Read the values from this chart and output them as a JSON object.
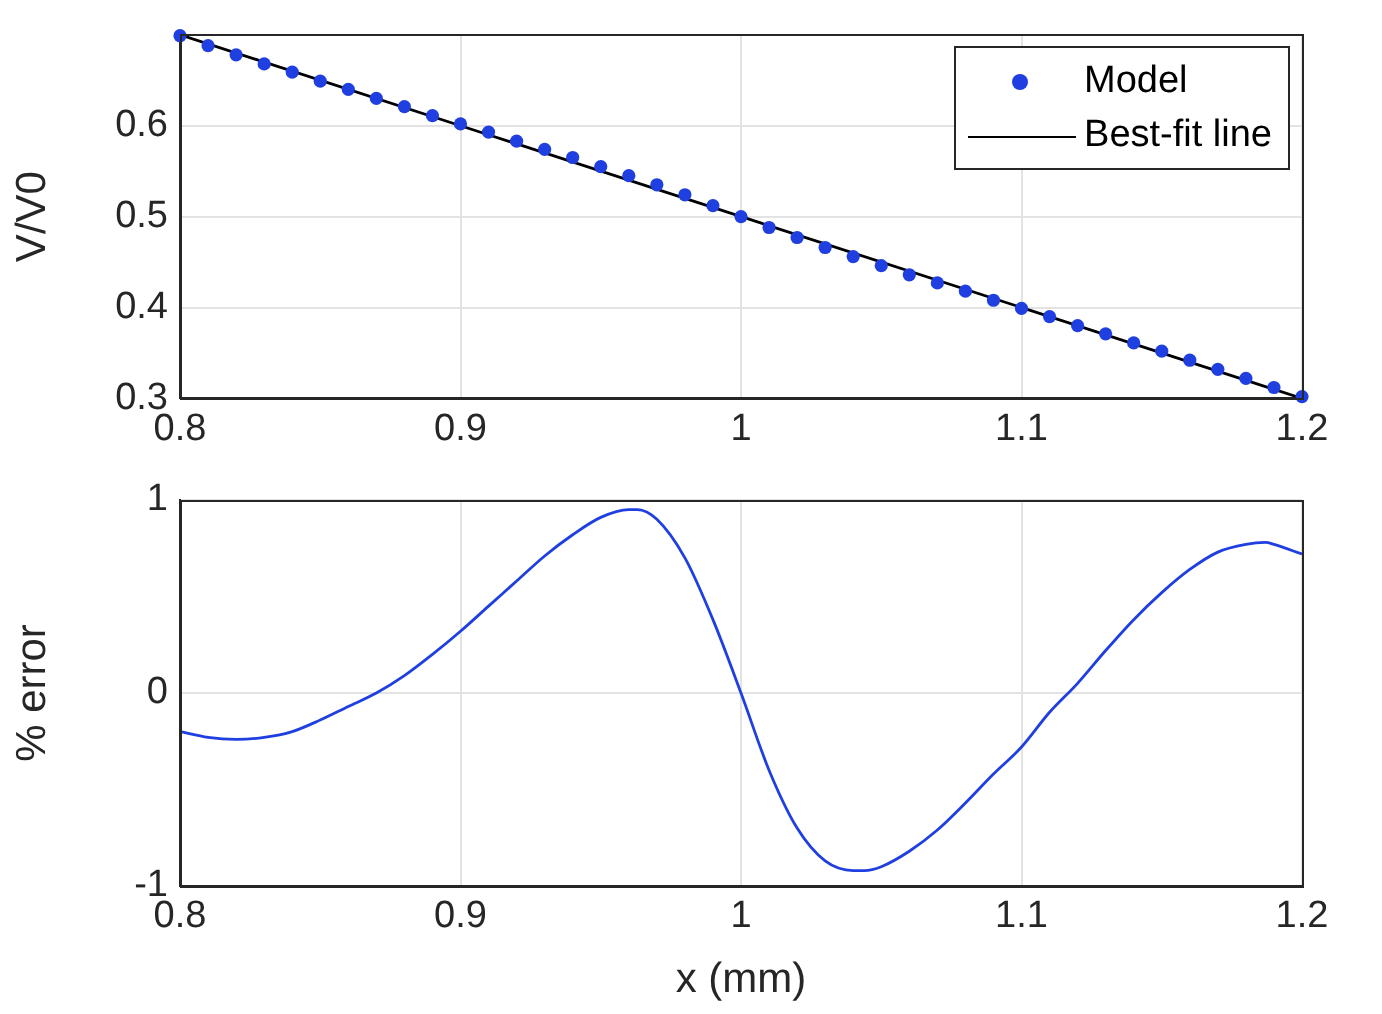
{
  "chart_data": [
    {
      "type": "scatter",
      "ylabel": "V/V0",
      "xlim": [
        0.8,
        1.2
      ],
      "xticks": [
        0.8,
        0.9,
        1,
        1.1,
        1.2
      ],
      "ylim": [
        0.3,
        0.7
      ],
      "yticks": [
        0.3,
        0.4,
        0.5,
        0.6
      ],
      "grid": true,
      "legend": "top right",
      "x": [
        0.8,
        0.81,
        0.82,
        0.83,
        0.84,
        0.85,
        0.86,
        0.87,
        0.88,
        0.89,
        0.9,
        0.91,
        0.92,
        0.93,
        0.94,
        0.95,
        0.96,
        0.97,
        0.98,
        0.99,
        1.0,
        1.01,
        1.02,
        1.03,
        1.04,
        1.05,
        1.06,
        1.07,
        1.08,
        1.09,
        1.1,
        1.11,
        1.12,
        1.13,
        1.14,
        1.15,
        1.16,
        1.17,
        1.18,
        1.19,
        1.2
      ],
      "series": [
        {
          "name": "Model",
          "type": "scatter",
          "marker": "circle",
          "color": "#1f3fe0",
          "values": [
            0.699,
            0.688,
            0.678,
            0.668,
            0.659,
            0.649,
            0.64,
            0.63,
            0.621,
            0.611,
            0.602,
            0.593,
            0.583,
            0.574,
            0.565,
            0.555,
            0.545,
            0.535,
            0.524,
            0.512,
            0.5,
            0.488,
            0.477,
            0.466,
            0.456,
            0.446,
            0.436,
            0.427,
            0.418,
            0.408,
            0.399,
            0.39,
            0.38,
            0.371,
            0.361,
            0.352,
            0.342,
            0.332,
            0.322,
            0.312,
            0.302
          ]
        },
        {
          "name": "Best-fit line",
          "type": "line",
          "marker": "none",
          "line_style": "solid",
          "color": "#000000",
          "x": [
            0.8,
            1.2
          ],
          "values": [
            0.7,
            0.3
          ]
        }
      ]
    },
    {
      "type": "line",
      "xlabel": "x (mm)",
      "ylabel": "% error",
      "xlim": [
        0.8,
        1.2
      ],
      "xticks": [
        0.8,
        0.9,
        1,
        1.1,
        1.2
      ],
      "ylim": [
        -1,
        1
      ],
      "yticks": [
        -1,
        0,
        1
      ],
      "grid": true,
      "marker": "none",
      "line_style": "solid",
      "x": [
        0.8,
        0.81,
        0.82,
        0.83,
        0.84,
        0.85,
        0.86,
        0.87,
        0.88,
        0.89,
        0.9,
        0.91,
        0.92,
        0.93,
        0.94,
        0.95,
        0.96,
        0.963,
        0.97,
        0.98,
        0.99,
        1.0,
        1.01,
        1.02,
        1.03,
        1.04,
        1.044,
        1.05,
        1.06,
        1.07,
        1.08,
        1.09,
        1.1,
        1.11,
        1.12,
        1.13,
        1.14,
        1.15,
        1.16,
        1.17,
        1.18,
        1.187,
        1.19,
        1.2
      ],
      "series": [
        {
          "color": "#1f3fe0",
          "values": [
            -0.2,
            -0.23,
            -0.24,
            -0.23,
            -0.2,
            -0.14,
            -0.07,
            0.0,
            0.09,
            0.2,
            0.32,
            0.45,
            0.58,
            0.71,
            0.82,
            0.91,
            0.95,
            0.95,
            0.9,
            0.7,
            0.38,
            0.0,
            -0.4,
            -0.7,
            -0.87,
            -0.92,
            -0.92,
            -0.9,
            -0.82,
            -0.71,
            -0.57,
            -0.42,
            -0.28,
            -0.1,
            0.05,
            0.22,
            0.38,
            0.52,
            0.64,
            0.73,
            0.77,
            0.78,
            0.77,
            0.72
          ]
        }
      ]
    }
  ]
}
